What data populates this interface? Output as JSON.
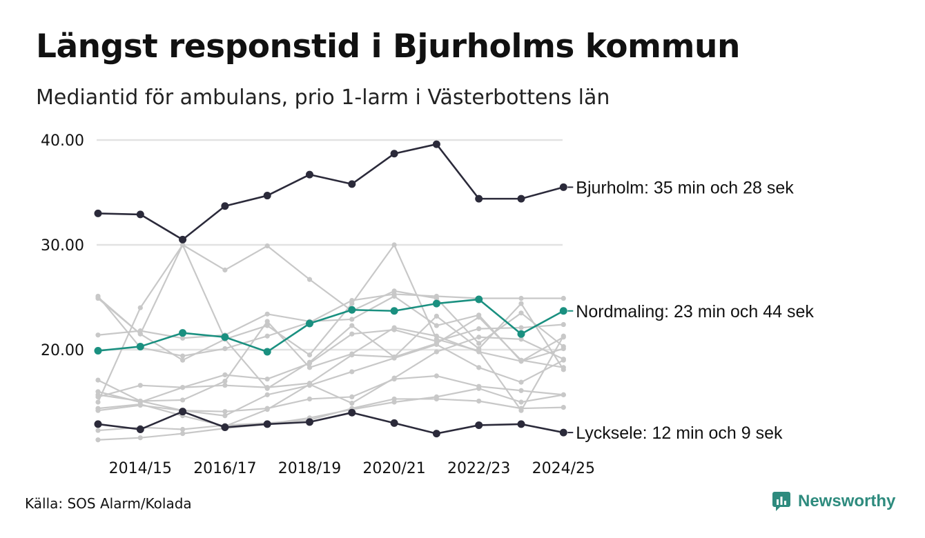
{
  "header": {
    "title": "Längst responstid i Bjurholms kommun",
    "subtitle": "Mediantid för ambulans, prio 1-larm i Västerbottens län"
  },
  "footer": {
    "source": "Källa: SOS Alarm/Kolada",
    "brand": "Newsworthy"
  },
  "colors": {
    "highlight_dark": "#2b2a3a",
    "highlight_teal": "#1a9080",
    "background_lines": "#c8c8c8",
    "gridline": "#e2e2e2",
    "brand": "#2e8b7e"
  },
  "chart_data": {
    "type": "line",
    "title": "Längst responstid i Bjurholms kommun",
    "subtitle": "Mediantid för ambulans, prio 1-larm i Västerbottens län",
    "x": [
      "2013/14",
      "2014/15",
      "2015/16",
      "2016/17",
      "2017/18",
      "2018/19",
      "2019/20",
      "2020/21",
      "2021/22",
      "2022/23",
      "2023/24",
      "2024/25"
    ],
    "x_tick_labels": [
      "2014/15",
      "2016/17",
      "2018/19",
      "2020/21",
      "2022/23",
      "2024/25"
    ],
    "y_ticks": [
      "20.00",
      "30.00",
      "40.00"
    ],
    "ylim": [
      10,
      40
    ],
    "grid": true,
    "highlighted_series": [
      {
        "name": "Bjurholm",
        "label": "Bjurholm: 35 min och 28 sek",
        "color": "#2b2a3a",
        "values": [
          33.0,
          32.9,
          30.5,
          33.7,
          34.7,
          36.7,
          35.8,
          38.7,
          39.6,
          34.4,
          34.4,
          35.5
        ]
      },
      {
        "name": "Nordmaling",
        "label": "Nordmaling: 23 min och 44 sek",
        "color": "#1a9080",
        "values": [
          19.9,
          20.3,
          21.6,
          21.2,
          19.8,
          22.5,
          23.8,
          23.7,
          24.4,
          24.8,
          21.5,
          23.7
        ]
      },
      {
        "name": "Lycksele",
        "label": "Lycksele: 12 min och 9 sek",
        "color": "#2b2a3a",
        "values": [
          12.9,
          12.4,
          14.1,
          12.6,
          12.9,
          13.1,
          14.0,
          13.0,
          12.0,
          12.8,
          12.9,
          12.1
        ]
      }
    ],
    "background_series": [
      {
        "values": [
          25.0,
          21.5,
          30.0,
          27.6,
          29.9,
          26.7,
          23.7,
          25.6,
          24.9,
          20.6,
          23.5,
          20.3
        ]
      },
      {
        "values": [
          15.0,
          24.0,
          30.0,
          21.0,
          22.3,
          19.5,
          24.4,
          30.0,
          21.0,
          19.9,
          14.2,
          21.3
        ]
      },
      {
        "values": [
          25.1,
          20.2,
          19.4,
          20.1,
          21.3,
          22.6,
          24.7,
          25.3,
          25.1,
          24.9,
          24.9,
          24.9
        ]
      },
      {
        "values": [
          21.4,
          21.8,
          21.1,
          21.4,
          23.4,
          22.7,
          22.9,
          25.1,
          22.3,
          23.3,
          18.9,
          21.2
        ]
      },
      {
        "values": [
          24.9,
          21.5,
          19.0,
          21.0,
          16.3,
          18.8,
          22.3,
          19.3,
          23.2,
          20.1,
          24.4,
          18.1
        ]
      },
      {
        "values": [
          17.1,
          15.1,
          15.2,
          17.0,
          22.7,
          18.3,
          19.6,
          22.1,
          21.3,
          19.8,
          18.9,
          20.1
        ]
      },
      {
        "values": [
          16.0,
          15.0,
          16.4,
          17.6,
          17.2,
          18.7,
          21.5,
          21.9,
          20.8,
          22.0,
          22.1,
          22.4
        ]
      },
      {
        "values": [
          15.5,
          16.6,
          16.4,
          16.6,
          16.4,
          16.8,
          19.5,
          19.3,
          20.6,
          23.1,
          19.0,
          18.3
        ]
      },
      {
        "values": [
          14.2,
          14.7,
          14.2,
          13.7,
          15.7,
          16.6,
          17.9,
          19.2,
          20.5,
          18.3,
          16.9,
          19.0
        ]
      },
      {
        "values": [
          15.7,
          15.1,
          14.2,
          14.1,
          14.4,
          15.3,
          15.5,
          17.2,
          17.5,
          16.5,
          16.1,
          15.7
        ]
      },
      {
        "values": [
          14.4,
          14.8,
          13.7,
          12.7,
          14.3,
          16.7,
          14.9,
          17.3,
          19.8,
          21.2,
          21.0,
          19.1
        ]
      },
      {
        "values": [
          12.3,
          12.6,
          12.4,
          12.8,
          13.0,
          13.3,
          14.4,
          15.3,
          15.3,
          15.1,
          14.4,
          14.5
        ]
      },
      {
        "values": [
          11.4,
          11.6,
          12.0,
          12.5,
          12.9,
          13.5,
          14.3,
          15.0,
          15.5,
          16.3,
          15.0,
          15.7
        ]
      }
    ]
  }
}
